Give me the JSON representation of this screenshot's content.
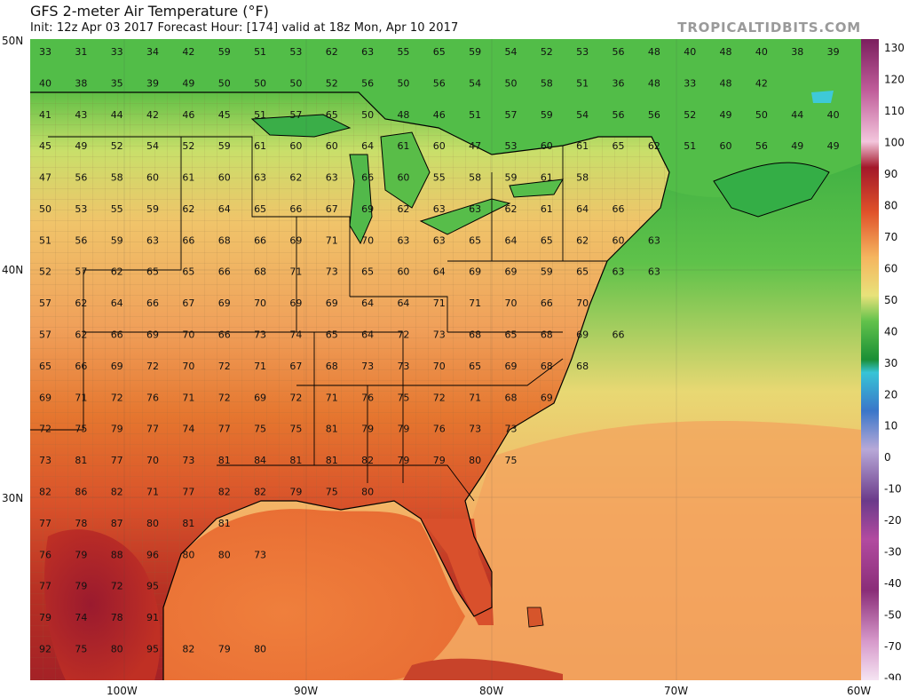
{
  "header": {
    "title": "GFS 2-meter Air Temperature (°F)",
    "subtitle": "Init: 12z Apr 03 2017   Forecast Hour: [174]   valid at 18z Mon, Apr 10 2017",
    "brand": "TROPICALTIDBITS.COM"
  },
  "axes": {
    "lat_labels": [
      "50N",
      "40N",
      "30N"
    ],
    "lon_labels": [
      "100W",
      "90W",
      "80W",
      "70W",
      "60W"
    ]
  },
  "colorbar": {
    "unit": "°F",
    "labels": [
      "130",
      "120",
      "110",
      "100",
      "90",
      "80",
      "70",
      "60",
      "50",
      "40",
      "30",
      "20",
      "10",
      "0",
      "-10",
      "-20",
      "-30",
      "-40",
      "-50",
      "-70",
      "-90"
    ]
  },
  "colors": {
    "hot": "#a81f24",
    "warm": "#e0622c",
    "mild": "#f2a55a",
    "cool": "#e8e27a",
    "green": "#48c04a",
    "deep_green": "#1f9e3c",
    "cyan": "#3ec9d8"
  },
  "map_values": [
    [
      "33",
      "31",
      "33",
      "34",
      "42",
      "59",
      "51",
      "53",
      "62",
      "63",
      "55",
      "65",
      "59",
      "54",
      "52",
      "53",
      "56",
      "48",
      "40",
      "48",
      "40",
      "38",
      "39"
    ],
    [
      "40",
      "38",
      "35",
      "39",
      "49",
      "50",
      "50",
      "50",
      "52",
      "56",
      "50",
      "56",
      "54",
      "50",
      "58",
      "51",
      "36",
      "48",
      "33",
      "48",
      "42"
    ],
    [
      "41",
      "43",
      "44",
      "42",
      "46",
      "45",
      "51",
      "57",
      "65",
      "50",
      "48",
      "46",
      "51",
      "57",
      "59",
      "54",
      "56",
      "56",
      "52",
      "49",
      "50",
      "44",
      "40"
    ],
    [
      "45",
      "49",
      "52",
      "54",
      "52",
      "59",
      "61",
      "60",
      "60",
      "64",
      "61",
      "60",
      "47",
      "53",
      "60",
      "61",
      "65",
      "62",
      "51",
      "60",
      "56",
      "49",
      "49"
    ],
    [
      "47",
      "56",
      "58",
      "60",
      "61",
      "60",
      "63",
      "62",
      "63",
      "66",
      "60",
      "55",
      "58",
      "59",
      "61",
      "58"
    ],
    [
      "50",
      "53",
      "55",
      "59",
      "62",
      "64",
      "65",
      "66",
      "67",
      "69",
      "62",
      "63",
      "63",
      "62",
      "61",
      "64",
      "66"
    ],
    [
      "51",
      "56",
      "59",
      "63",
      "66",
      "68",
      "66",
      "69",
      "71",
      "70",
      "63",
      "63",
      "65",
      "64",
      "65",
      "62",
      "60",
      "63"
    ],
    [
      "52",
      "57",
      "62",
      "65",
      "65",
      "66",
      "68",
      "71",
      "73",
      "65",
      "60",
      "64",
      "69",
      "69",
      "59",
      "65",
      "63",
      "63"
    ],
    [
      "57",
      "62",
      "64",
      "66",
      "67",
      "69",
      "70",
      "69",
      "69",
      "64",
      "64",
      "71",
      "71",
      "70",
      "66",
      "70"
    ],
    [
      "57",
      "62",
      "66",
      "69",
      "70",
      "66",
      "73",
      "74",
      "65",
      "64",
      "72",
      "73",
      "68",
      "65",
      "68",
      "69",
      "66"
    ],
    [
      "65",
      "66",
      "69",
      "72",
      "70",
      "72",
      "71",
      "67",
      "68",
      "73",
      "73",
      "70",
      "65",
      "69",
      "68",
      "68"
    ],
    [
      "69",
      "71",
      "72",
      "76",
      "71",
      "72",
      "69",
      "72",
      "71",
      "76",
      "75",
      "72",
      "71",
      "68",
      "69"
    ],
    [
      "72",
      "75",
      "79",
      "77",
      "74",
      "77",
      "75",
      "75",
      "81",
      "79",
      "79",
      "76",
      "73",
      "73"
    ],
    [
      "73",
      "81",
      "77",
      "70",
      "73",
      "81",
      "84",
      "81",
      "81",
      "82",
      "79",
      "79",
      "80",
      "75"
    ],
    [
      "82",
      "86",
      "82",
      "71",
      "77",
      "82",
      "82",
      "79",
      "75",
      "80"
    ],
    [
      "77",
      "78",
      "87",
      "80",
      "81",
      "81"
    ],
    [
      "76",
      "79",
      "88",
      "96",
      "80",
      "80",
      "73"
    ],
    [
      "77",
      "79",
      "72",
      "95"
    ],
    [
      "79",
      "74",
      "78",
      "91"
    ],
    [
      "92",
      "75",
      "80",
      "95",
      "82",
      "79",
      "80"
    ]
  ]
}
